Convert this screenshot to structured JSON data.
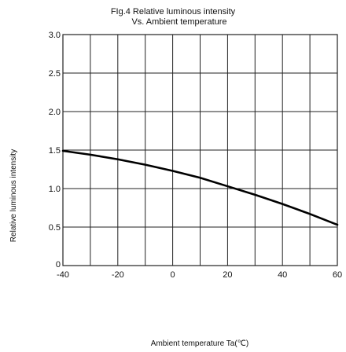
{
  "chart_data": {
    "type": "line",
    "title_line1": "FIg.4 Relative luminous intensity",
    "title_line2": "Vs. Ambient temperature",
    "xlabel": "Ambient temperature Ta(℃)",
    "ylabel": "Relative luminous intensity",
    "xlim": [
      -40,
      60
    ],
    "ylim": [
      0,
      3.0
    ],
    "x_ticks": [
      -40,
      -20,
      0,
      20,
      40,
      60
    ],
    "x_tick_labels": [
      "-40",
      "-20",
      "0",
      "20",
      "40",
      "60"
    ],
    "y_ticks": [
      0,
      0.5,
      1.0,
      1.5,
      2.0,
      2.5,
      3.0
    ],
    "y_tick_labels": [
      "0",
      "0.5",
      "1.0",
      "1.5",
      "2.0",
      "2.5",
      "3.0"
    ],
    "x_grid_step": 10,
    "y_grid_step": 0.5,
    "grid": true,
    "series": [
      {
        "color": "#000000",
        "x": [
          -40,
          -30,
          -20,
          -10,
          0,
          10,
          20,
          30,
          40,
          50,
          60
        ],
        "y": [
          1.49,
          1.44,
          1.38,
          1.31,
          1.23,
          1.14,
          1.03,
          0.92,
          0.8,
          0.67,
          0.53
        ]
      }
    ]
  }
}
